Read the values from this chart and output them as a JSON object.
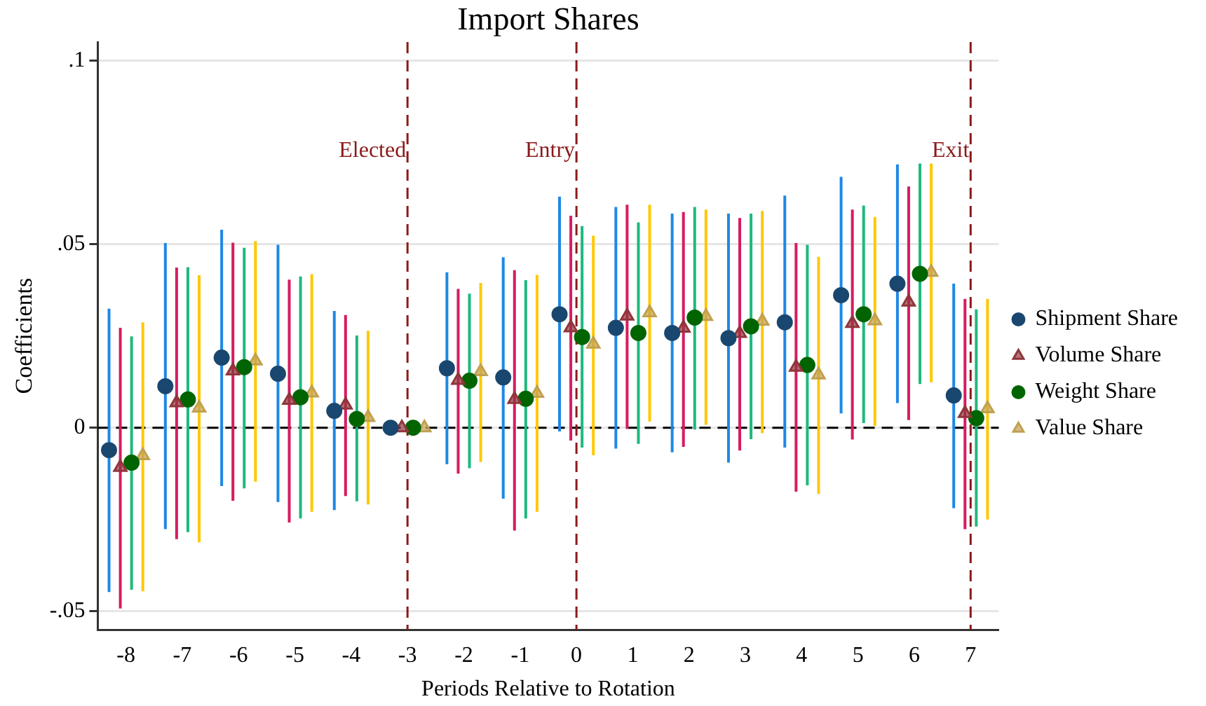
{
  "chart_data": {
    "type": "scatter",
    "title": "Import Shares",
    "xlabel": "Periods Relative to Rotation",
    "ylabel": "Coefficients",
    "xlim": [
      -8.5,
      7.5
    ],
    "xticks": [
      -8,
      -7,
      -6,
      -5,
      -4,
      -3,
      -2,
      -1,
      0,
      1,
      2,
      3,
      4,
      5,
      6,
      7
    ],
    "ylim": [
      -0.055,
      0.105
    ],
    "yticks": [
      {
        "value": -0.05,
        "label": "-.05"
      },
      0,
      {
        "value": 0.05,
        "label": ".05"
      },
      {
        "value": 0.1,
        "label": ".1"
      }
    ],
    "grid": "y",
    "legend": "right",
    "ref_lines": [
      {
        "axis": "y",
        "value": 0,
        "label": null,
        "color": "#000000",
        "line_style": "dashed"
      },
      {
        "axis": "x",
        "value": -3,
        "label": "Elected",
        "color": "#8b1a1a",
        "line_style": "dashed"
      },
      {
        "axis": "x",
        "value": 0,
        "label": "Entry",
        "color": "#8b1a1a",
        "line_style": "dashed"
      },
      {
        "axis": "x",
        "value": 7,
        "label": "Exit",
        "color": "#8b1a1a",
        "line_style": "dashed"
      }
    ],
    "series": [
      {
        "name": "Shipment Share",
        "color": "#1a476f",
        "marker": "circle",
        "x": [
          -8.3,
          -7.3,
          -6.3,
          -5.3,
          -4.3,
          -3.3,
          -2.3,
          -1.3,
          -0.3,
          0.7,
          1.7,
          2.7,
          3.7,
          4.7,
          5.7,
          6.7
        ],
        "values": [
          -0.0061,
          0.0113,
          0.0191,
          0.0147,
          0.0046,
          0,
          0.0162,
          0.0137,
          0.0309,
          0.0272,
          0.0258,
          0.0244,
          0.0287,
          0.0361,
          0.0392,
          0.0088
        ],
        "errors": [
          [
            -0.0447,
            0.0324
          ],
          [
            -0.0276,
            0.0503
          ],
          [
            -0.0159,
            0.0539
          ],
          [
            -0.0202,
            0.0498
          ],
          [
            -0.0224,
            0.0318
          ],
          null,
          [
            -0.0099,
            0.0423
          ],
          [
            -0.0193,
            0.0464
          ],
          [
            -0.001,
            0.0629
          ],
          [
            -0.0057,
            0.0601
          ],
          [
            -0.0067,
            0.0583
          ],
          [
            -0.0095,
            0.0583
          ],
          [
            -0.0054,
            0.0632
          ],
          [
            0.0039,
            0.0683
          ],
          [
            0.0067,
            0.0717
          ],
          [
            -0.0219,
            0.0392
          ]
        ]
      },
      {
        "name": "Volume Share",
        "color": "#90353b",
        "marker": "triangle",
        "x": [
          -8.1,
          -7.1,
          -6.1,
          -5.1,
          -4.1,
          -3.1,
          -2.1,
          -1.1,
          -0.1,
          0.9,
          1.9,
          2.9,
          3.9,
          4.9,
          5.9,
          6.9
        ],
        "values": [
          -0.0108,
          0.0068,
          0.0155,
          0.0075,
          0.0062,
          0,
          0.0129,
          0.0077,
          0.0272,
          0.0304,
          0.0271,
          0.0257,
          0.0165,
          0.0284,
          0.0342,
          0.0039
        ],
        "errors": [
          [
            -0.0492,
            0.0272
          ],
          [
            -0.0303,
            0.0436
          ],
          [
            -0.0199,
            0.0504
          ],
          [
            -0.0258,
            0.0403
          ],
          [
            -0.0186,
            0.0307
          ],
          null,
          [
            -0.0125,
            0.0378
          ],
          [
            -0.028,
            0.0429
          ],
          [
            -0.0035,
            0.0577
          ],
          [
            -0.0003,
            0.0607
          ],
          [
            -0.0052,
            0.0587
          ],
          [
            -0.0062,
            0.0571
          ],
          [
            -0.0174,
            0.0503
          ],
          [
            -0.0032,
            0.0594
          ],
          [
            0.0021,
            0.0657
          ],
          [
            -0.0276,
            0.0351
          ]
        ]
      },
      {
        "name": "Weight Share",
        "color": "#006400",
        "marker": "circle",
        "x": [
          -7.9,
          -6.9,
          -5.9,
          -4.9,
          -3.9,
          -2.9,
          -1.9,
          -0.9,
          0.1,
          1.1,
          2.1,
          3.1,
          4.1,
          5.1,
          6.1,
          7.1
        ],
        "values": [
          -0.0095,
          0.0077,
          0.0165,
          0.0083,
          0.0024,
          0,
          0.0128,
          0.0079,
          0.0247,
          0.0258,
          0.03,
          0.0276,
          0.0171,
          0.0309,
          0.0419,
          0.0026
        ],
        "errors": [
          [
            -0.0441,
            0.0249
          ],
          [
            -0.0284,
            0.0437
          ],
          [
            -0.0165,
            0.049
          ],
          [
            -0.0247,
            0.0412
          ],
          [
            -0.02,
            0.0251
          ],
          null,
          [
            -0.011,
            0.0365
          ],
          [
            -0.0247,
            0.0402
          ],
          [
            -0.0054,
            0.0549
          ],
          [
            -0.0044,
            0.0559
          ],
          [
            -0.0005,
            0.0601
          ],
          [
            -0.0031,
            0.0583
          ],
          [
            -0.0157,
            0.0498
          ],
          [
            0.0013,
            0.0605
          ],
          [
            0.0119,
            0.0719
          ],
          [
            -0.0269,
            0.0322
          ]
        ]
      },
      {
        "name": "Value Share",
        "color": "#c0a050",
        "marker": "triangle",
        "x": [
          -7.7,
          -6.7,
          -5.7,
          -4.7,
          -3.7,
          -2.7,
          -1.7,
          -0.7,
          0.3,
          1.3,
          2.3,
          3.3,
          4.3,
          5.3,
          6.3,
          7.3
        ],
        "values": [
          -0.0076,
          0.0054,
          0.0182,
          0.0095,
          0.0028,
          0,
          0.0153,
          0.0094,
          0.0228,
          0.0313,
          0.0303,
          0.029,
          0.0144,
          0.0291,
          0.0423,
          0.0052
        ],
        "errors": [
          [
            -0.0445,
            0.0287
          ],
          [
            -0.0312,
            0.0415
          ],
          [
            -0.0147,
            0.0508
          ],
          [
            -0.0229,
            0.0418
          ],
          [
            -0.0209,
            0.0264
          ],
          null,
          [
            -0.0093,
            0.0394
          ],
          [
            -0.0229,
            0.0416
          ],
          [
            -0.0075,
            0.0523
          ],
          [
            0.0017,
            0.0607
          ],
          [
            0.0008,
            0.0594
          ],
          [
            -0.0015,
            0.059
          ],
          [
            -0.018,
            0.0465
          ],
          [
            0.0005,
            0.0574
          ],
          [
            0.0124,
            0.0719
          ],
          [
            -0.025,
            0.0351
          ]
        ]
      }
    ]
  }
}
